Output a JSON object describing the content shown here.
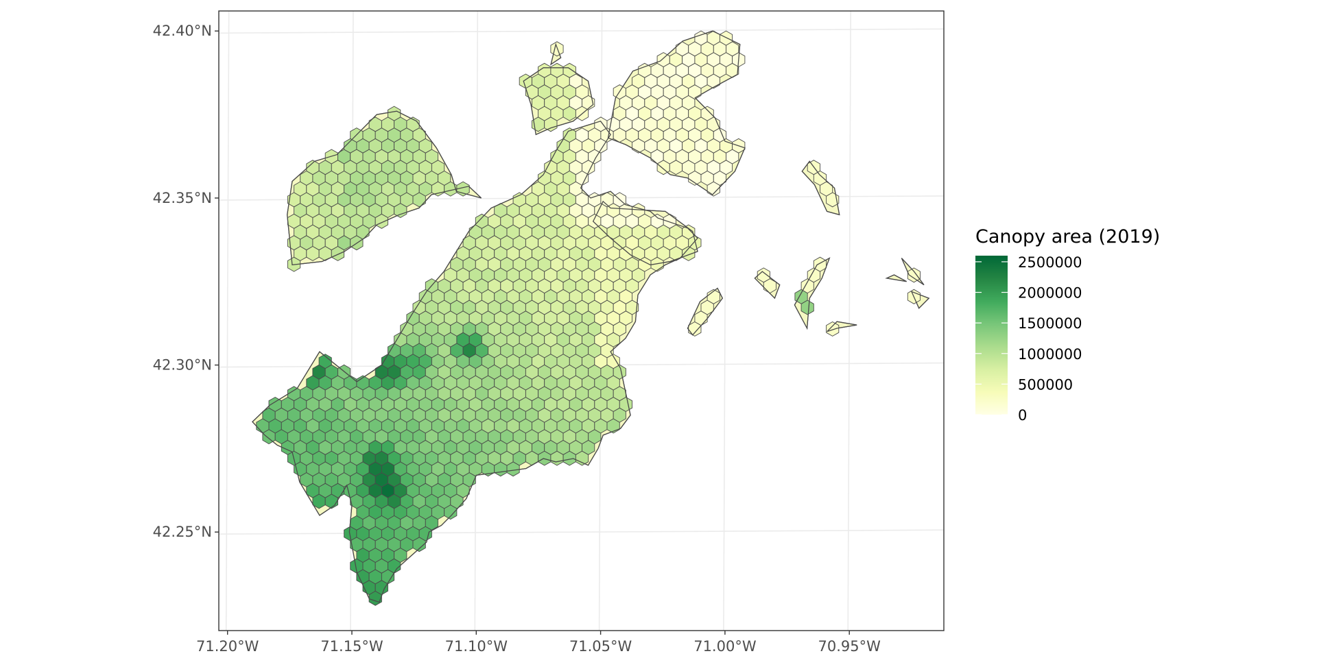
{
  "map": {
    "longitude_labels": [
      "71.20°W",
      "71.15°W",
      "71.10°W",
      "71.05°W",
      "71.00°W",
      "70.95°W"
    ],
    "latitude_labels": [
      "42.40°N",
      "42.35°N",
      "42.30°N",
      "42.25°N"
    ],
    "lon_range": [
      -71.2035,
      -70.912
    ],
    "lat_range": [
      42.2205,
      42.406
    ],
    "projection_aspect_lat_deg": 42.31,
    "background_color": "#ffffff",
    "panel_border_color": "#333333",
    "grid_color": "#ebebeb",
    "cell_outline_color": "#4a4a4a",
    "hexbin_cell_size_approx_deg_lat": 0.0043
  },
  "legend": {
    "title": "Canopy area (2019)",
    "breaks": [
      "2500000",
      "2000000",
      "1500000",
      "1000000",
      "500000",
      "0"
    ],
    "break_values": [
      2500000,
      2000000,
      1500000,
      1000000,
      500000,
      0
    ],
    "max_value": 2600000,
    "palette": [
      "#ffffe5",
      "#f7fcb9",
      "#d9f0a3",
      "#addd8e",
      "#78c679",
      "#41ab5d",
      "#238443",
      "#006837"
    ]
  },
  "chart_data": {
    "type": "heatmap",
    "description_level": "hexbin choropleth of tree canopy area per hexagon",
    "title": "",
    "fill_legend_title": "Canopy area (2019)",
    "regions": [
      {
        "name_hint": "main",
        "canopy_hotspots": [
          {
            "lon": -71.139,
            "lat": 42.266,
            "value": 2550000
          },
          {
            "lon": -71.134,
            "lat": 42.262,
            "value": 2500000
          },
          {
            "lon": -71.139,
            "lat": 42.271,
            "value": 2350000
          },
          {
            "lon": -71.134,
            "lat": 42.2985,
            "value": 2300000
          },
          {
            "lon": -71.164,
            "lat": 42.2985,
            "value": 2350000
          },
          {
            "lon": -71.103,
            "lat": 42.3055,
            "value": 2250000
          },
          {
            "lon": -71.124,
            "lat": 42.301,
            "value": 2000000
          },
          {
            "lon": -71.143,
            "lat": 42.2985,
            "value": 2300000
          }
        ]
      }
    ]
  }
}
